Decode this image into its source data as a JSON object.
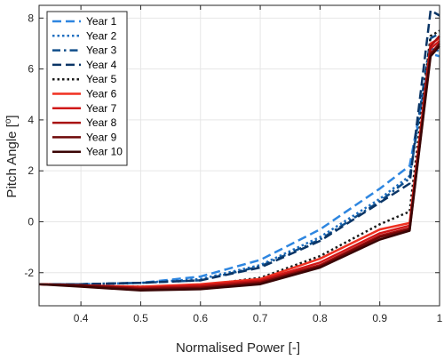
{
  "chart_data": {
    "type": "line",
    "xlabel": "Normalised Power [-]",
    "ylabel_text": "Pitch Angle [",
    "ylabel_sup": "o",
    "ylabel_close": "]",
    "xlim": [
      0.33,
      1.0
    ],
    "ylim": [
      -3.3,
      8.5
    ],
    "x_ticks": [
      0.4,
      0.5,
      0.6,
      0.7,
      0.8,
      0.9,
      1
    ],
    "x_tick_labels": [
      "0.4",
      "0.5",
      "0.6",
      "0.7",
      "0.8",
      "0.9",
      "1"
    ],
    "y_ticks": [
      -2,
      0,
      2,
      4,
      6,
      8
    ],
    "y_tick_labels": [
      "-2",
      "0",
      "2",
      "4",
      "6",
      "8"
    ],
    "grid": true,
    "legend_position": "top-left",
    "x": [
      0.33,
      0.4,
      0.5,
      0.6,
      0.7,
      0.8,
      0.9,
      0.95,
      0.985,
      1.0
    ],
    "series": [
      {
        "name": "Year 1",
        "color": "#2E86E0",
        "dash": "dashed",
        "width": 2.5,
        "values": [
          -2.45,
          -2.45,
          -2.4,
          -2.15,
          -1.5,
          -0.3,
          1.3,
          2.2,
          6.6,
          6.5
        ]
      },
      {
        "name": "Year 2",
        "color": "#1F6FC0",
        "dash": "dotted",
        "width": 2.5,
        "values": [
          -2.45,
          -2.45,
          -2.4,
          -2.25,
          -1.7,
          -0.6,
          0.9,
          1.8,
          6.8,
          6.7
        ]
      },
      {
        "name": "Year 3",
        "color": "#104E8B",
        "dash": "dashdot",
        "width": 2.5,
        "values": [
          -2.45,
          -2.45,
          -2.4,
          -2.3,
          -1.75,
          -0.7,
          0.8,
          1.7,
          7.2,
          7.4
        ]
      },
      {
        "name": "Year 4",
        "color": "#0A3566",
        "dash": "dashed",
        "width": 2.5,
        "values": [
          -2.45,
          -2.45,
          -2.4,
          -2.3,
          -1.8,
          -0.75,
          0.75,
          1.5,
          8.3,
          8.1
        ]
      },
      {
        "name": "Year 5",
        "color": "#1A1A1A",
        "dash": "dotted",
        "width": 2.5,
        "values": [
          -2.45,
          -2.5,
          -2.55,
          -2.5,
          -2.2,
          -1.35,
          -0.1,
          0.4,
          7.3,
          7.5
        ]
      },
      {
        "name": "Year 6",
        "color": "#F03020",
        "dash": "solid",
        "width": 2.5,
        "values": [
          -2.45,
          -2.5,
          -2.55,
          -2.45,
          -2.25,
          -1.45,
          -0.3,
          -0.05,
          7.0,
          7.2
        ]
      },
      {
        "name": "Year 7",
        "color": "#D01818",
        "dash": "solid",
        "width": 2.5,
        "values": [
          -2.45,
          -2.5,
          -2.6,
          -2.5,
          -2.3,
          -1.6,
          -0.45,
          -0.15,
          6.8,
          7.1
        ]
      },
      {
        "name": "Year 8",
        "color": "#A81010",
        "dash": "solid",
        "width": 2.5,
        "values": [
          -2.45,
          -2.5,
          -2.6,
          -2.55,
          -2.35,
          -1.7,
          -0.55,
          -0.25,
          6.9,
          7.3
        ]
      },
      {
        "name": "Year 9",
        "color": "#6E0808",
        "dash": "solid",
        "width": 2.5,
        "values": [
          -2.45,
          -2.5,
          -2.65,
          -2.6,
          -2.4,
          -1.75,
          -0.6,
          -0.3,
          6.6,
          7.0
        ]
      },
      {
        "name": "Year 10",
        "color": "#3A0505",
        "dash": "solid",
        "width": 2.5,
        "values": [
          -2.45,
          -2.55,
          -2.7,
          -2.65,
          -2.45,
          -1.8,
          -0.7,
          -0.35,
          6.5,
          6.9
        ]
      }
    ]
  }
}
